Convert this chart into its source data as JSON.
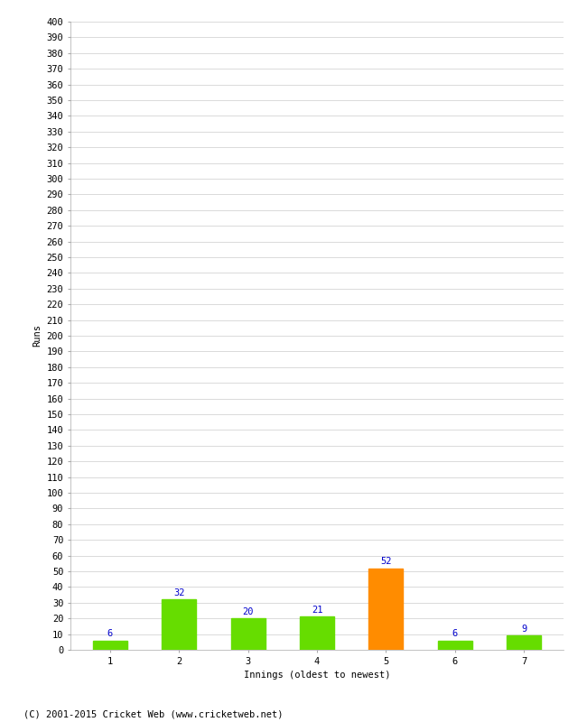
{
  "categories": [
    "1",
    "2",
    "3",
    "4",
    "5",
    "6",
    "7"
  ],
  "values": [
    6,
    32,
    20,
    21,
    52,
    6,
    9
  ],
  "bar_colors": [
    "#66dd00",
    "#66dd00",
    "#66dd00",
    "#66dd00",
    "#ff8c00",
    "#66dd00",
    "#66dd00"
  ],
  "xlabel": "Innings (oldest to newest)",
  "ylabel": "Runs",
  "ylim": [
    0,
    400
  ],
  "ytick_step": 10,
  "label_color": "#0000cc",
  "grid_color": "#cccccc",
  "footer": "(C) 2001-2015 Cricket Web (www.cricketweb.net)",
  "background_color": "#ffffff",
  "label_fontsize": 7.5,
  "axis_fontsize": 7.5,
  "ylabel_fontsize": 7.5,
  "footer_fontsize": 7.5,
  "bar_width": 0.5
}
